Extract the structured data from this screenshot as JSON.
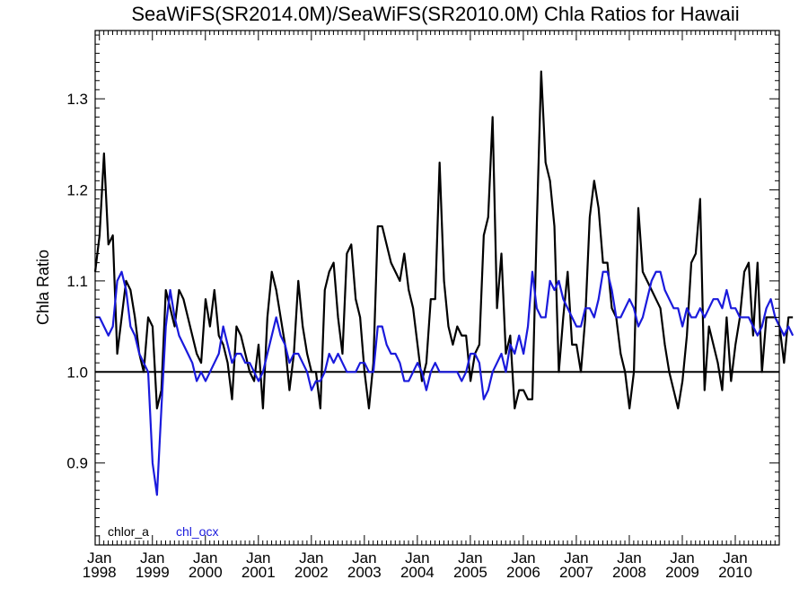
{
  "chart_data": {
    "type": "line",
    "title": "SeaWiFS(SR2014.0M)/SeaWiFS(SR2010.0M)  Chla Ratios for Hawaii",
    "ylabel": "Chla Ratio",
    "xlabel": "",
    "xlim": [
      1997.92,
      2010.83
    ],
    "ylim": [
      0.81,
      1.375
    ],
    "yticks": [
      0.9,
      1.0,
      1.1,
      1.2,
      1.3
    ],
    "ytick_labels": [
      "0.9",
      "1.0",
      "1.1",
      "1.2",
      "1.3"
    ],
    "xticks": [
      1998,
      1999,
      2000,
      2001,
      2002,
      2003,
      2004,
      2005,
      2006,
      2007,
      2008,
      2009,
      2010
    ],
    "xtick_labels": [
      {
        "month": "Jan",
        "year": "1998"
      },
      {
        "month": "Jan",
        "year": "1999"
      },
      {
        "month": "Jan",
        "year": "2000"
      },
      {
        "month": "Jan",
        "year": "2001"
      },
      {
        "month": "Jan",
        "year": "2002"
      },
      {
        "month": "Jan",
        "year": "2003"
      },
      {
        "month": "Jan",
        "year": "2004"
      },
      {
        "month": "Jan",
        "year": "2005"
      },
      {
        "month": "Jan",
        "year": "2006"
      },
      {
        "month": "Jan",
        "year": "2007"
      },
      {
        "month": "Jan",
        "year": "2008"
      },
      {
        "month": "Jan",
        "year": "2009"
      },
      {
        "month": "Jan",
        "year": "2010"
      }
    ],
    "reference_line": 1.0,
    "grid": false,
    "legend_position": "bottom-left",
    "series": [
      {
        "name": "chlor_a",
        "color": "#000000",
        "start": 1997.92,
        "step_months": 1,
        "values": [
          1.11,
          1.15,
          1.24,
          1.14,
          1.15,
          1.02,
          1.06,
          1.1,
          1.09,
          1.06,
          1.02,
          1.0,
          1.06,
          1.05,
          0.96,
          0.98,
          1.09,
          1.07,
          1.05,
          1.09,
          1.08,
          1.06,
          1.04,
          1.02,
          1.01,
          1.08,
          1.05,
          1.09,
          1.04,
          1.03,
          1.01,
          0.97,
          1.05,
          1.04,
          1.02,
          1.0,
          0.99,
          1.03,
          0.96,
          1.06,
          1.11,
          1.09,
          1.06,
          1.03,
          0.98,
          1.02,
          1.1,
          1.05,
          1.02,
          1.0,
          1.0,
          0.96,
          1.09,
          1.11,
          1.12,
          1.06,
          1.02,
          1.13,
          1.14,
          1.08,
          1.06,
          1.0,
          0.96,
          1.01,
          1.16,
          1.16,
          1.14,
          1.12,
          1.11,
          1.1,
          1.13,
          1.09,
          1.07,
          1.03,
          0.99,
          1.01,
          1.08,
          1.08,
          1.23,
          1.1,
          1.05,
          1.03,
          1.05,
          1.04,
          1.04,
          0.99,
          1.02,
          1.03,
          1.15,
          1.17,
          1.28,
          1.07,
          1.13,
          1.02,
          1.04,
          0.96,
          0.98,
          0.98,
          0.97,
          0.97,
          1.16,
          1.33,
          1.23,
          1.21,
          1.16,
          1.0,
          1.06,
          1.11,
          1.03,
          1.03,
          1.0,
          1.06,
          1.17,
          1.21,
          1.18,
          1.12,
          1.12,
          1.07,
          1.06,
          1.02,
          1.0,
          0.96,
          1.0,
          1.18,
          1.11,
          1.1,
          1.09,
          1.08,
          1.07,
          1.03,
          1.0,
          0.98,
          0.96,
          0.99,
          1.04,
          1.12,
          1.13,
          1.19,
          0.98,
          1.05,
          1.03,
          1.01,
          0.98,
          1.06,
          0.99,
          1.03,
          1.06,
          1.11,
          1.12,
          1.04,
          1.12,
          1.0,
          1.06,
          1.06,
          1.06,
          1.05,
          1.01,
          1.06,
          1.06
        ]
      },
      {
        "name": "chl_ocx",
        "color": "#1a1adc",
        "start": 1997.92,
        "step_months": 1,
        "values": [
          1.06,
          1.06,
          1.05,
          1.04,
          1.05,
          1.1,
          1.11,
          1.09,
          1.05,
          1.04,
          1.02,
          1.01,
          1.0,
          0.9,
          0.865,
          0.96,
          1.05,
          1.09,
          1.06,
          1.04,
          1.03,
          1.02,
          1.01,
          0.99,
          1.0,
          0.99,
          1.0,
          1.01,
          1.02,
          1.05,
          1.03,
          1.01,
          1.02,
          1.02,
          1.01,
          1.01,
          1.0,
          0.99,
          1.0,
          1.02,
          1.04,
          1.06,
          1.04,
          1.03,
          1.01,
          1.02,
          1.02,
          1.01,
          1.0,
          0.98,
          0.99,
          0.99,
          1.0,
          1.02,
          1.01,
          1.02,
          1.01,
          1.0,
          1.0,
          1.0,
          1.01,
          1.01,
          1.0,
          1.0,
          1.05,
          1.05,
          1.03,
          1.02,
          1.02,
          1.01,
          0.99,
          0.99,
          1.0,
          1.01,
          1.0,
          0.98,
          1.0,
          1.01,
          1.0,
          1.0,
          1.0,
          1.0,
          1.0,
          0.99,
          1.0,
          1.02,
          1.02,
          1.01,
          0.97,
          0.98,
          1.0,
          1.01,
          1.02,
          1.0,
          1.03,
          1.02,
          1.04,
          1.02,
          1.05,
          1.11,
          1.07,
          1.06,
          1.06,
          1.1,
          1.09,
          1.1,
          1.08,
          1.07,
          1.06,
          1.05,
          1.05,
          1.07,
          1.07,
          1.06,
          1.08,
          1.11,
          1.11,
          1.09,
          1.06,
          1.06,
          1.07,
          1.08,
          1.07,
          1.05,
          1.06,
          1.08,
          1.1,
          1.11,
          1.11,
          1.09,
          1.08,
          1.07,
          1.07,
          1.05,
          1.07,
          1.06,
          1.06,
          1.07,
          1.06,
          1.07,
          1.08,
          1.08,
          1.07,
          1.09,
          1.07,
          1.07,
          1.06,
          1.06,
          1.06,
          1.05,
          1.04,
          1.05,
          1.07,
          1.08,
          1.06,
          1.05,
          1.04,
          1.05,
          1.04
        ]
      }
    ]
  }
}
